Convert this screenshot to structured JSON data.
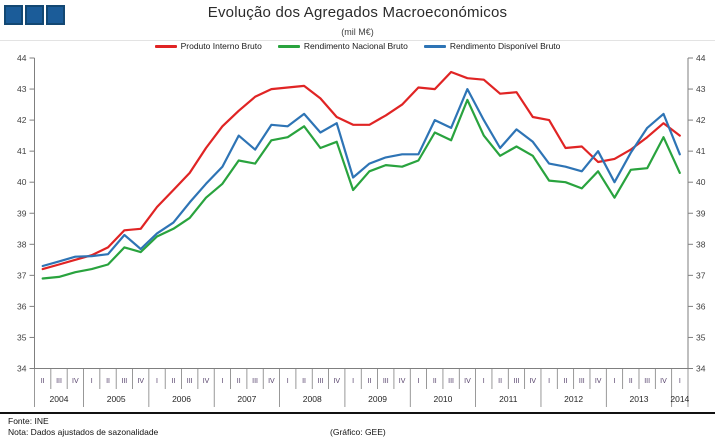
{
  "page_title": "Evolução dos Agregados Macroeconómicos",
  "footer": {
    "fonte": "Fonte: INE",
    "nota": "Nota: Dados ajustados de sazonalidade",
    "grafico": "(Gráfico: GEE)"
  },
  "logo": {
    "square_color": "#1b5c99",
    "square_count": 3
  },
  "chart_data": {
    "type": "line",
    "title": "Evolução dos Agregados Macroeconómicos",
    "subtitle": "(mil M€)",
    "ylim": [
      34,
      44
    ],
    "y_ticks": [
      34,
      35,
      36,
      37,
      38,
      39,
      40,
      41,
      42,
      43,
      44
    ],
    "grid": false,
    "legend_position": "top",
    "axis_color": "#7f7f7f",
    "x_years": [
      {
        "label": "2004",
        "quarters": [
          "II",
          "III",
          "IV"
        ]
      },
      {
        "label": "2005",
        "quarters": [
          "I",
          "II",
          "III",
          "IV"
        ]
      },
      {
        "label": "2006",
        "quarters": [
          "I",
          "II",
          "III",
          "IV"
        ]
      },
      {
        "label": "2007",
        "quarters": [
          "I",
          "II",
          "III",
          "IV"
        ]
      },
      {
        "label": "2008",
        "quarters": [
          "I",
          "II",
          "III",
          "IV"
        ]
      },
      {
        "label": "2009",
        "quarters": [
          "I",
          "II",
          "III",
          "IV"
        ]
      },
      {
        "label": "2010",
        "quarters": [
          "I",
          "II",
          "III",
          "IV"
        ]
      },
      {
        "label": "2011",
        "quarters": [
          "I",
          "II",
          "III",
          "IV"
        ]
      },
      {
        "label": "2012",
        "quarters": [
          "I",
          "II",
          "III",
          "IV"
        ]
      },
      {
        "label": "2013",
        "quarters": [
          "I",
          "II",
          "III",
          "IV"
        ]
      },
      {
        "label": "2014",
        "quarters": [
          "I"
        ]
      }
    ],
    "series": [
      {
        "name": "Produto Interno Bruto",
        "color": "#e02424",
        "values": [
          37.2,
          37.35,
          37.5,
          37.65,
          37.9,
          38.45,
          38.5,
          39.2,
          39.75,
          40.3,
          41.1,
          41.8,
          42.3,
          42.75,
          43.0,
          43.05,
          43.1,
          42.7,
          42.1,
          41.85,
          41.85,
          42.15,
          42.5,
          43.05,
          43.0,
          43.55,
          43.35,
          43.3,
          42.85,
          42.9,
          42.1,
          42.0,
          41.1,
          41.15,
          40.65,
          40.75,
          41.05,
          41.45,
          41.9,
          41.5
        ]
      },
      {
        "name": "Rendimento Nacional Bruto",
        "color": "#29a33e",
        "values": [
          36.9,
          36.95,
          37.1,
          37.2,
          37.35,
          37.9,
          37.75,
          38.25,
          38.5,
          38.85,
          39.5,
          39.95,
          40.7,
          40.6,
          41.35,
          41.45,
          41.8,
          41.1,
          41.3,
          39.75,
          40.35,
          40.55,
          40.5,
          40.7,
          41.6,
          41.35,
          42.65,
          41.5,
          40.85,
          41.15,
          40.85,
          40.05,
          40.0,
          39.8,
          40.35,
          39.5,
          40.4,
          40.45,
          41.45,
          40.3
        ]
      },
      {
        "name": "Rendimento Disponível Bruto",
        "color": "#2e74b5",
        "values": [
          37.3,
          37.45,
          37.6,
          37.62,
          37.68,
          38.3,
          37.85,
          38.35,
          38.7,
          39.35,
          39.95,
          40.5,
          41.5,
          41.05,
          41.85,
          41.8,
          42.2,
          41.6,
          41.9,
          40.15,
          40.6,
          40.8,
          40.9,
          40.9,
          42.0,
          41.75,
          43.0,
          42.0,
          41.1,
          41.7,
          41.3,
          40.6,
          40.5,
          40.35,
          41.0,
          40.0,
          40.95,
          41.75,
          42.2,
          40.9
        ]
      }
    ]
  }
}
